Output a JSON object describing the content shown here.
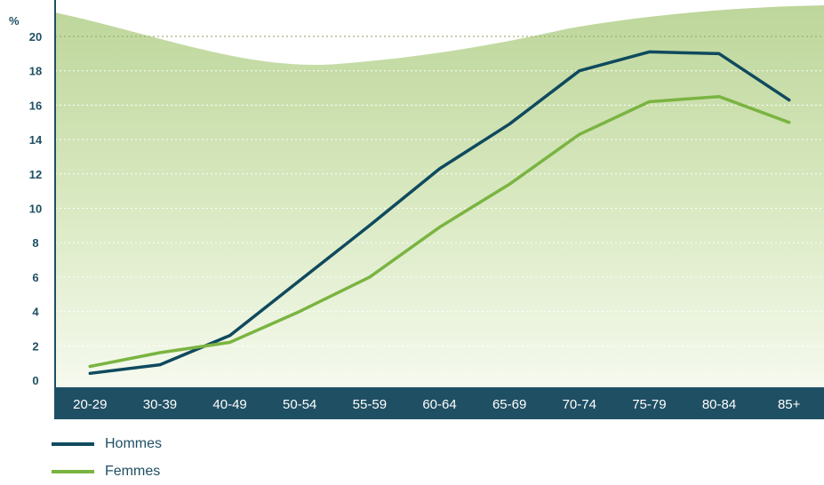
{
  "chart_data": {
    "type": "line",
    "ylabel": "%",
    "ylim": [
      0,
      20
    ],
    "yticks": [
      "0",
      "2",
      "4",
      "6",
      "8",
      "10",
      "12",
      "14",
      "16",
      "18",
      "20"
    ],
    "categories": [
      "20-29",
      "30-39",
      "40-49",
      "50-54",
      "55-59",
      "60-64",
      "65-69",
      "70-74",
      "75-79",
      "80-84",
      "85+"
    ],
    "series": [
      {
        "name": "Hommes",
        "color": "#0f4a5e",
        "values": [
          0.4,
          0.9,
          2.6,
          5.8,
          9.0,
          12.3,
          14.9,
          18.0,
          19.1,
          19.0,
          16.3
        ]
      },
      {
        "name": "Femmes",
        "color": "#7ab441",
        "values": [
          0.8,
          1.6,
          2.2,
          4.0,
          6.0,
          8.9,
          11.4,
          14.3,
          16.2,
          16.5,
          15.0
        ]
      }
    ],
    "grid": true,
    "legend": "bottom-left"
  },
  "colors": {
    "axis_band": "#1f4f63",
    "background_top": "#c2da9e",
    "background_bottom": "#ffffff"
  }
}
